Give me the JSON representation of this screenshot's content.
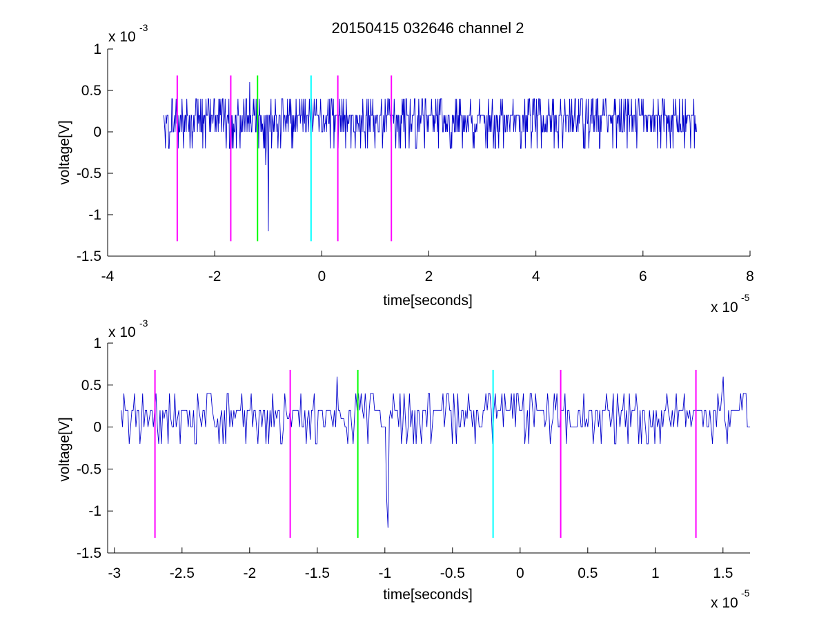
{
  "chart_data": [
    {
      "type": "line",
      "title": "20150415 032646 channel 2",
      "xlabel": "time[seconds]",
      "ylabel": "voltage[V]",
      "x_multiplier": "x 10",
      "x_exponent": "-5",
      "y_multiplier": "x 10",
      "y_exponent": "-3",
      "xlim": [
        -4,
        8
      ],
      "ylim": [
        -1.5,
        1
      ],
      "xticks": [
        -4,
        -2,
        0,
        2,
        4,
        6,
        8
      ],
      "xtick_labels": [
        "-4",
        "-2",
        "0",
        "2",
        "4",
        "6",
        "8"
      ],
      "yticks": [
        -1.5,
        -1,
        -0.5,
        0,
        0.5,
        1
      ],
      "ytick_labels": [
        "-1.5",
        "-1",
        "-0.5",
        "0",
        "0.5",
        "1"
      ],
      "grid": false,
      "signal": {
        "color": "#0000cc",
        "x_start": -2.95,
        "x_end": 7.0,
        "samples": 1000,
        "seed": 7,
        "levels": [
          0.2,
          0.2,
          0.2,
          0.2,
          0.2,
          0.0,
          0.0,
          0.0,
          0.4,
          0.4,
          0.1,
          -0.2
        ],
        "spikes": [
          [
            -1.0,
            -1.2
          ],
          [
            -1.05,
            -0.4
          ],
          [
            -1.35,
            0.6
          ],
          [
            -1.6,
            -0.2
          ],
          [
            -0.2,
            -0.2
          ]
        ]
      },
      "markers": [
        {
          "x": -2.7,
          "color": "#ff00ff",
          "y_top": 0.68,
          "y_bottom": -1.32
        },
        {
          "x": -1.7,
          "color": "#ff00ff",
          "y_top": 0.68,
          "y_bottom": -1.32
        },
        {
          "x": -1.2,
          "color": "#00ff00",
          "y_top": 0.68,
          "y_bottom": -1.32
        },
        {
          "x": -0.2,
          "color": "#00ffff",
          "y_top": 0.68,
          "y_bottom": -1.32
        },
        {
          "x": 0.3,
          "color": "#ff00ff",
          "y_top": 0.68,
          "y_bottom": -1.32
        },
        {
          "x": 1.3,
          "color": "#ff00ff",
          "y_top": 0.68,
          "y_bottom": -1.32
        }
      ]
    },
    {
      "type": "line",
      "title": "",
      "xlabel": "time[seconds]",
      "ylabel": "voltage[V]",
      "x_multiplier": "x 10",
      "x_exponent": "-5",
      "y_multiplier": "x 10",
      "y_exponent": "-3",
      "xlim": [
        -3.05,
        1.7
      ],
      "ylim": [
        -1.5,
        1
      ],
      "xticks": [
        -3,
        -2.5,
        -2,
        -1.5,
        -1,
        -0.5,
        0,
        0.5,
        1,
        1.5
      ],
      "xtick_labels": [
        "-3",
        "-2.5",
        "-2",
        "-1.5",
        "-1",
        "-0.5",
        "0",
        "0.5",
        "1",
        "1.5"
      ],
      "yticks": [
        -1.5,
        -1,
        -0.5,
        0,
        0.5,
        1
      ],
      "ytick_labels": [
        "-1.5",
        "-1",
        "-0.5",
        "0",
        "0.5",
        "1"
      ],
      "grid": false,
      "signal": {
        "color": "#0000cc",
        "x_start": -2.95,
        "x_end": 1.7,
        "samples": 470,
        "seed": 13,
        "levels": [
          0.2,
          0.2,
          0.2,
          0.2,
          0.2,
          0.0,
          0.0,
          0.0,
          0.4,
          0.4,
          0.1,
          -0.2
        ],
        "spikes": [
          [
            -0.98,
            -1.2
          ],
          [
            -0.99,
            -0.85
          ],
          [
            -1.35,
            0.6
          ],
          [
            -1.55,
            -0.15
          ],
          [
            -2.6,
            -0.2
          ],
          [
            -0.2,
            -0.2
          ],
          [
            1.5,
            0.6
          ],
          [
            -0.5,
            -0.2
          ]
        ]
      },
      "markers": [
        {
          "x": -2.7,
          "color": "#ff00ff",
          "y_top": 0.68,
          "y_bottom": -1.32
        },
        {
          "x": -1.7,
          "color": "#ff00ff",
          "y_top": 0.68,
          "y_bottom": -1.32
        },
        {
          "x": -1.2,
          "color": "#00ff00",
          "y_top": 0.68,
          "y_bottom": -1.32
        },
        {
          "x": -0.2,
          "color": "#00ffff",
          "y_top": 0.68,
          "y_bottom": -1.32
        },
        {
          "x": 0.3,
          "color": "#ff00ff",
          "y_top": 0.68,
          "y_bottom": -1.32
        },
        {
          "x": 1.3,
          "color": "#ff00ff",
          "y_top": 0.68,
          "y_bottom": -1.32
        }
      ]
    }
  ]
}
